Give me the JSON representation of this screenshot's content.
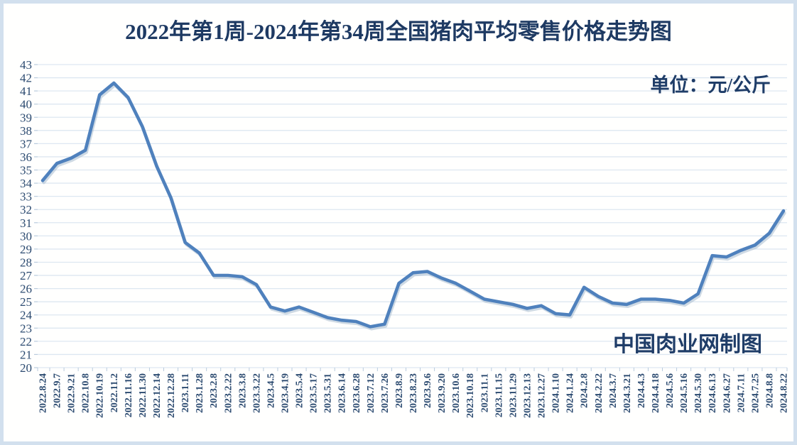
{
  "title": "2022年第1周-2024年第34周全国猪肉平均零售价格走势图",
  "unit_label": "单位：元/公斤",
  "watermark": "中国肉业网制图",
  "colors": {
    "line": "#4f81bd",
    "line_shadow": "#a8bbce",
    "gridline": "#dde7f1",
    "axis_tick": "#b9cbdd",
    "title_text": "#1e3a63",
    "axis_text": "#2b4a70",
    "frame_border": "#d2e0ee",
    "background": "#fffffe"
  },
  "chart_data": {
    "type": "line",
    "title": "2022年第1周-2024年第34周全国猪肉平均零售价格走势图",
    "ylabel": "元/公斤",
    "xlabel": "",
    "ylim": [
      20,
      43
    ],
    "ytick_step": 1,
    "grid": "horizontal",
    "legend_position": "none",
    "x_label_rotation": 90,
    "categories": [
      "2022.8.24",
      "2022.9.7",
      "2022.9.21",
      "2022.10.8",
      "2022.10.19",
      "2022.11.2",
      "2022.11.16",
      "2022.11.30",
      "2022.12.14",
      "2022.12.28",
      "2023.1.11",
      "2023.1.28",
      "2023.2.8",
      "2023.2.22",
      "2023.3.8",
      "2023.3.22",
      "2023.4.5",
      "2023.4.19",
      "2023.5.4",
      "2023.5.17",
      "2023.5.31",
      "2023.6.14",
      "2023.6.28",
      "2023.7.12",
      "2023.7.26",
      "2023.8.9",
      "2023.8.23",
      "2023.9.6",
      "2023.9.20",
      "2023.10.6",
      "2023.10.18",
      "2023.11.1",
      "2023.11.15",
      "2023.11.29",
      "2023.12.13",
      "2023.12.27",
      "2024.1.10",
      "2024.1.24",
      "2024.2.8",
      "2024.2.22",
      "2024.3.7",
      "2024.3.21",
      "2024.4.3",
      "2024.4.18",
      "2024.5.6",
      "2024.5.16",
      "2024.5.30",
      "2024.6.13",
      "2024.6.27",
      "2024.7.11",
      "2024.7.25",
      "2024.8.8",
      "2024.8.22"
    ],
    "values": [
      34.2,
      35.5,
      35.9,
      36.5,
      40.7,
      41.6,
      40.5,
      38.3,
      35.3,
      32.9,
      29.5,
      28.7,
      27.0,
      27.0,
      26.9,
      26.3,
      24.6,
      24.3,
      24.6,
      24.2,
      23.8,
      23.6,
      23.5,
      23.1,
      23.3,
      26.4,
      27.2,
      27.3,
      26.8,
      26.4,
      25.8,
      25.2,
      25.0,
      24.8,
      24.5,
      24.7,
      24.1,
      24.0,
      26.1,
      25.4,
      24.9,
      24.8,
      25.2,
      25.2,
      25.1,
      24.9,
      25.6,
      28.5,
      28.4,
      28.9,
      29.3,
      30.2,
      31.9
    ]
  }
}
